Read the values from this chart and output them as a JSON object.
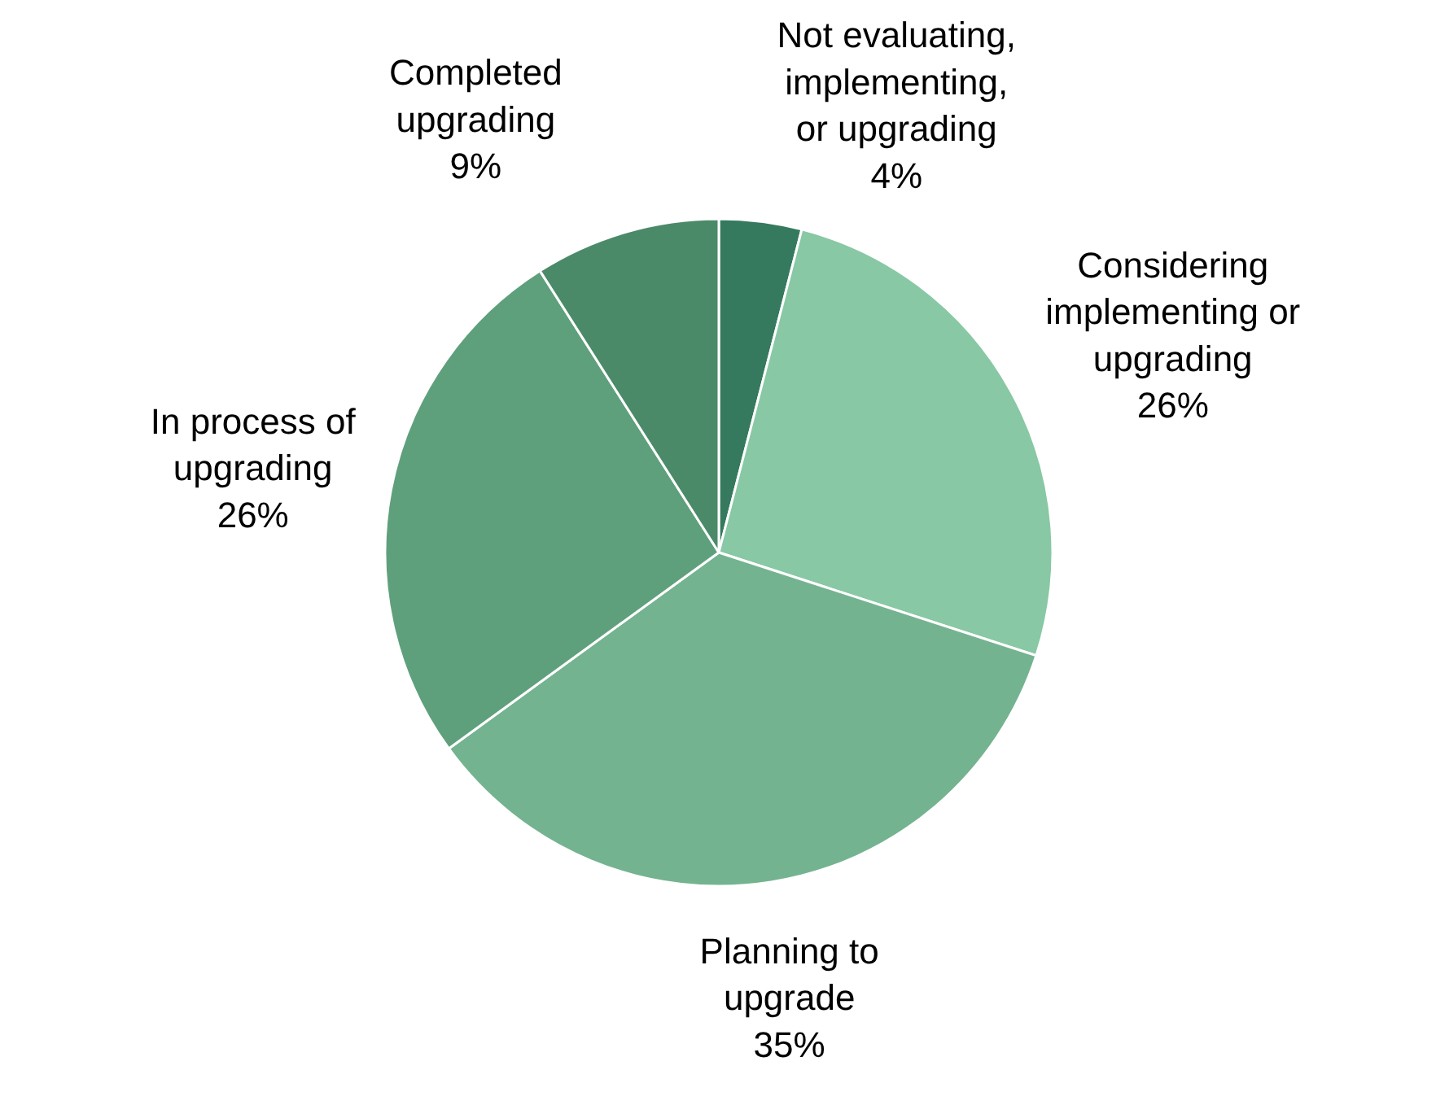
{
  "chart_data": {
    "type": "pie",
    "categories": [
      "Not evaluating, implementing, or upgrading",
      "Considering implementing or upgrading",
      "Planning to upgrade",
      "In process of upgrading",
      "Completed upgrading"
    ],
    "values": [
      4,
      26,
      35,
      26,
      9
    ],
    "value_labels": [
      "4%",
      "26%",
      "35%",
      "26%",
      "9%"
    ],
    "colors": [
      "#357a5e",
      "#88c8a4",
      "#74b390",
      "#5fa07c",
      "#4a8a68"
    ]
  }
}
